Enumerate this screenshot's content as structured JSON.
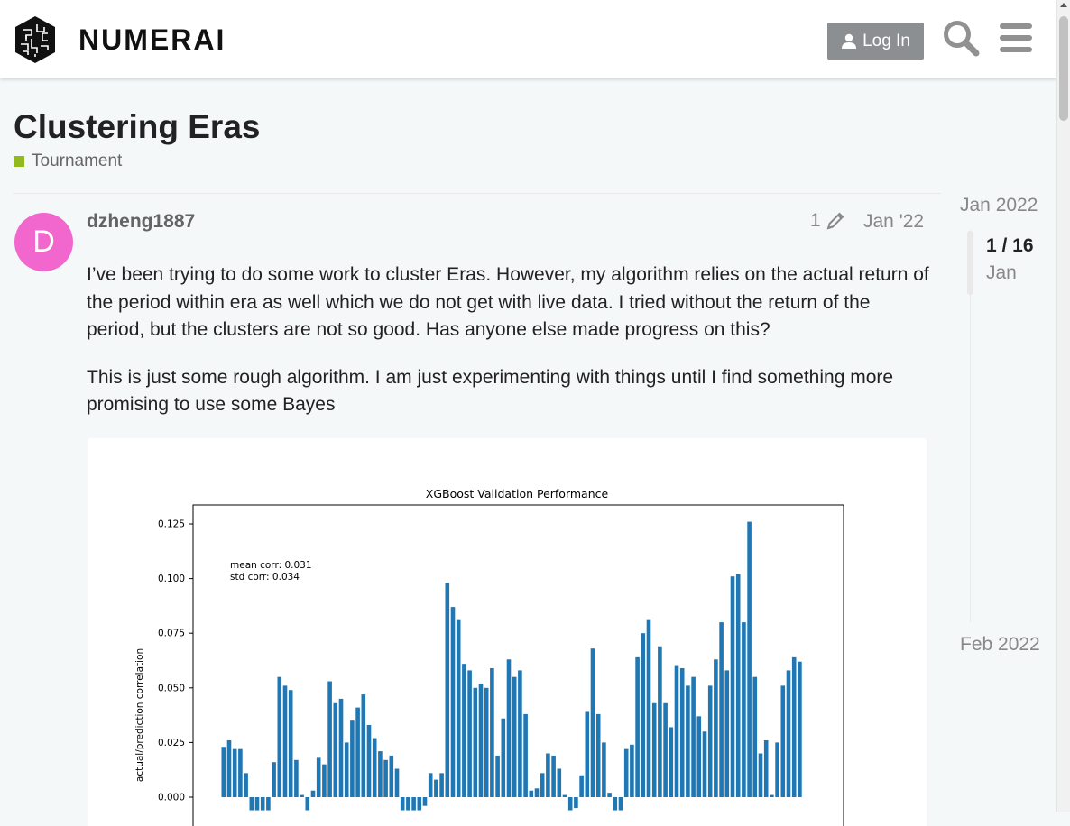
{
  "header": {
    "logo_text": "NUMERAI",
    "login_label": "Log In",
    "search_icon": "search-icon",
    "menu_icon": "hamburger-menu-icon"
  },
  "topic": {
    "title": "Clustering Eras",
    "category": "Tournament",
    "category_color": "#92ba20"
  },
  "post": {
    "avatar_letter": "D",
    "avatar_color": "#f267ce",
    "username": "dzheng1887",
    "edit_count": "1",
    "date": "Jan '22",
    "paragraphs": [
      "I’ve been trying to do some work to cluster Eras. However, my algorithm relies on the actual return of the period within era as well which we do not get with live data. I tried without the return of the period, but the clusters are not so good. Has anyone else made progress on this?",
      "This is just some rough algorithm. I am just experimenting with things until I find something more promising to use some Bayes"
    ]
  },
  "timeline": {
    "start": "Jan 2022",
    "position": "1 / 16",
    "position_date": "Jan",
    "end": "Feb 2022"
  },
  "chart_data": {
    "type": "bar",
    "title": "XGBoost Validation Performance",
    "ylabel": "actual/prediction correlation",
    "xlabel": "",
    "annotations": [
      "mean corr: 0.031",
      "std corr: 0.034"
    ],
    "yticks": [
      "0.000",
      "0.025",
      "0.050",
      "0.075",
      "0.100",
      "0.125"
    ],
    "ylim_visible": [
      -0.006,
      0.135
    ],
    "bar_color": "#1f77b4",
    "values": [
      0.023,
      0.026,
      0.022,
      0.022,
      0.011,
      -0.006,
      -0.006,
      -0.006,
      -0.006,
      0.016,
      0.055,
      0.051,
      0.049,
      0.017,
      0.001,
      -0.006,
      0.003,
      0.018,
      0.015,
      0.053,
      0.043,
      0.045,
      0.025,
      0.035,
      0.041,
      0.047,
      0.033,
      0.027,
      0.021,
      0.017,
      0.019,
      0.013,
      -0.006,
      -0.006,
      -0.006,
      -0.006,
      -0.004,
      0.011,
      0.008,
      0.011,
      0.098,
      0.087,
      0.081,
      0.061,
      0.058,
      0.05,
      0.052,
      0.05,
      0.059,
      0.019,
      0.036,
      0.063,
      0.055,
      0.058,
      0.038,
      0.003,
      0.004,
      0.011,
      0.02,
      0.019,
      0.013,
      0.001,
      -0.006,
      -0.005,
      0.01,
      0.039,
      0.068,
      0.038,
      0.025,
      0.002,
      -0.006,
      -0.006,
      0.022,
      0.024,
      0.064,
      0.075,
      0.081,
      0.043,
      0.069,
      0.043,
      0.032,
      0.06,
      0.059,
      0.051,
      0.055,
      0.037,
      0.03,
      0.051,
      0.063,
      0.08,
      0.058,
      0.101,
      0.102,
      0.08,
      0.126,
      0.055,
      0.02,
      0.026,
      0.001,
      0.025,
      0.051,
      0.058,
      0.064,
      0.062
    ]
  }
}
